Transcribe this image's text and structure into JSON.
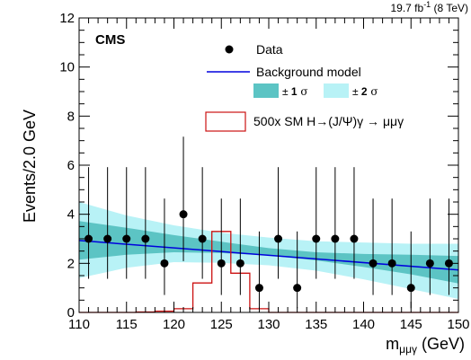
{
  "chart_data": {
    "type": "scatter",
    "experiment_label": "CMS",
    "luminosity_label": "19.7 fb",
    "luminosity_sup": "-1",
    "energy_label": " (8 TeV)",
    "xlabel": "m",
    "xlabel_sub": "μμγ",
    "xlabel_unit": " (GeV)",
    "ylabel": "Events/2.0 GeV",
    "xlim": [
      110,
      150
    ],
    "ylim": [
      0,
      12
    ],
    "x_ticks": [
      110,
      115,
      120,
      125,
      130,
      135,
      140,
      145,
      150
    ],
    "y_ticks": [
      0,
      2,
      4,
      6,
      8,
      10,
      12
    ],
    "legend": {
      "data": "Data",
      "background": "Background model",
      "band1_pm": "± ",
      "band1_num": "1",
      "band1_sigma": " σ",
      "band2_pm": "± ",
      "band2_num": "2",
      "band2_sigma": " σ",
      "signal": "500x SM H→(J/Ψ)γ → μμγ"
    },
    "colors": {
      "background_line": "#0000dd",
      "band1": "#5cc4c4",
      "band2": "#b8f2f6",
      "signal": "#cc1111",
      "data": "#000000"
    },
    "data_points": [
      {
        "x": 111,
        "y": 3,
        "err_lo": 1.63,
        "err_hi": 2.92
      },
      {
        "x": 113,
        "y": 3,
        "err_lo": 1.63,
        "err_hi": 2.92
      },
      {
        "x": 115,
        "y": 3,
        "err_lo": 1.63,
        "err_hi": 2.92
      },
      {
        "x": 117,
        "y": 3,
        "err_lo": 1.63,
        "err_hi": 2.92
      },
      {
        "x": 119,
        "y": 2,
        "err_lo": 1.29,
        "err_hi": 2.64
      },
      {
        "x": 121,
        "y": 4,
        "err_lo": 1.91,
        "err_hi": 3.16
      },
      {
        "x": 123,
        "y": 3,
        "err_lo": 1.63,
        "err_hi": 2.92
      },
      {
        "x": 125,
        "y": 2,
        "err_lo": 1.29,
        "err_hi": 2.64
      },
      {
        "x": 127,
        "y": 2,
        "err_lo": 1.29,
        "err_hi": 2.64
      },
      {
        "x": 129,
        "y": 1,
        "err_lo": 0.83,
        "err_hi": 2.3
      },
      {
        "x": 131,
        "y": 3,
        "err_lo": 1.63,
        "err_hi": 2.92
      },
      {
        "x": 133,
        "y": 1,
        "err_lo": 0.83,
        "err_hi": 2.3
      },
      {
        "x": 135,
        "y": 3,
        "err_lo": 1.63,
        "err_hi": 2.92
      },
      {
        "x": 137,
        "y": 3,
        "err_lo": 1.63,
        "err_hi": 2.92
      },
      {
        "x": 139,
        "y": 3,
        "err_lo": 1.63,
        "err_hi": 2.92
      },
      {
        "x": 141,
        "y": 2,
        "err_lo": 1.29,
        "err_hi": 2.64
      },
      {
        "x": 143,
        "y": 2,
        "err_lo": 1.29,
        "err_hi": 2.64
      },
      {
        "x": 145,
        "y": 1,
        "err_lo": 0.83,
        "err_hi": 2.3
      },
      {
        "x": 147,
        "y": 2,
        "err_lo": 1.29,
        "err_hi": 2.64
      },
      {
        "x": 149,
        "y": 2,
        "err_lo": 1.29,
        "err_hi": 2.64
      }
    ],
    "background_model": {
      "x": [
        110,
        150
      ],
      "y": [
        2.93,
        1.73
      ]
    },
    "band_1sigma": {
      "x": [
        110,
        115,
        120,
        125,
        130,
        135,
        140,
        145,
        150
      ],
      "low": [
        2.15,
        2.35,
        2.45,
        2.42,
        2.32,
        2.12,
        1.85,
        1.55,
        1.18
      ],
      "high": [
        3.72,
        3.45,
        3.15,
        2.88,
        2.62,
        2.45,
        2.38,
        2.35,
        2.3
      ]
    },
    "band_2sigma": {
      "x": [
        110,
        115,
        120,
        125,
        130,
        135,
        140,
        145,
        150
      ],
      "low": [
        1.4,
        1.82,
        2.05,
        2.02,
        1.92,
        1.7,
        1.35,
        0.95,
        0.55
      ],
      "high": [
        4.5,
        3.95,
        3.55,
        3.25,
        3.05,
        2.9,
        2.85,
        2.8,
        2.8
      ]
    },
    "signal_histogram": {
      "edges": [
        110,
        112,
        114,
        116,
        118,
        120,
        122,
        124,
        126,
        128,
        130,
        150
      ],
      "values": [
        0,
        0,
        0,
        0.02,
        0.05,
        0.15,
        1.2,
        3.3,
        1.6,
        0.15,
        0
      ]
    }
  }
}
